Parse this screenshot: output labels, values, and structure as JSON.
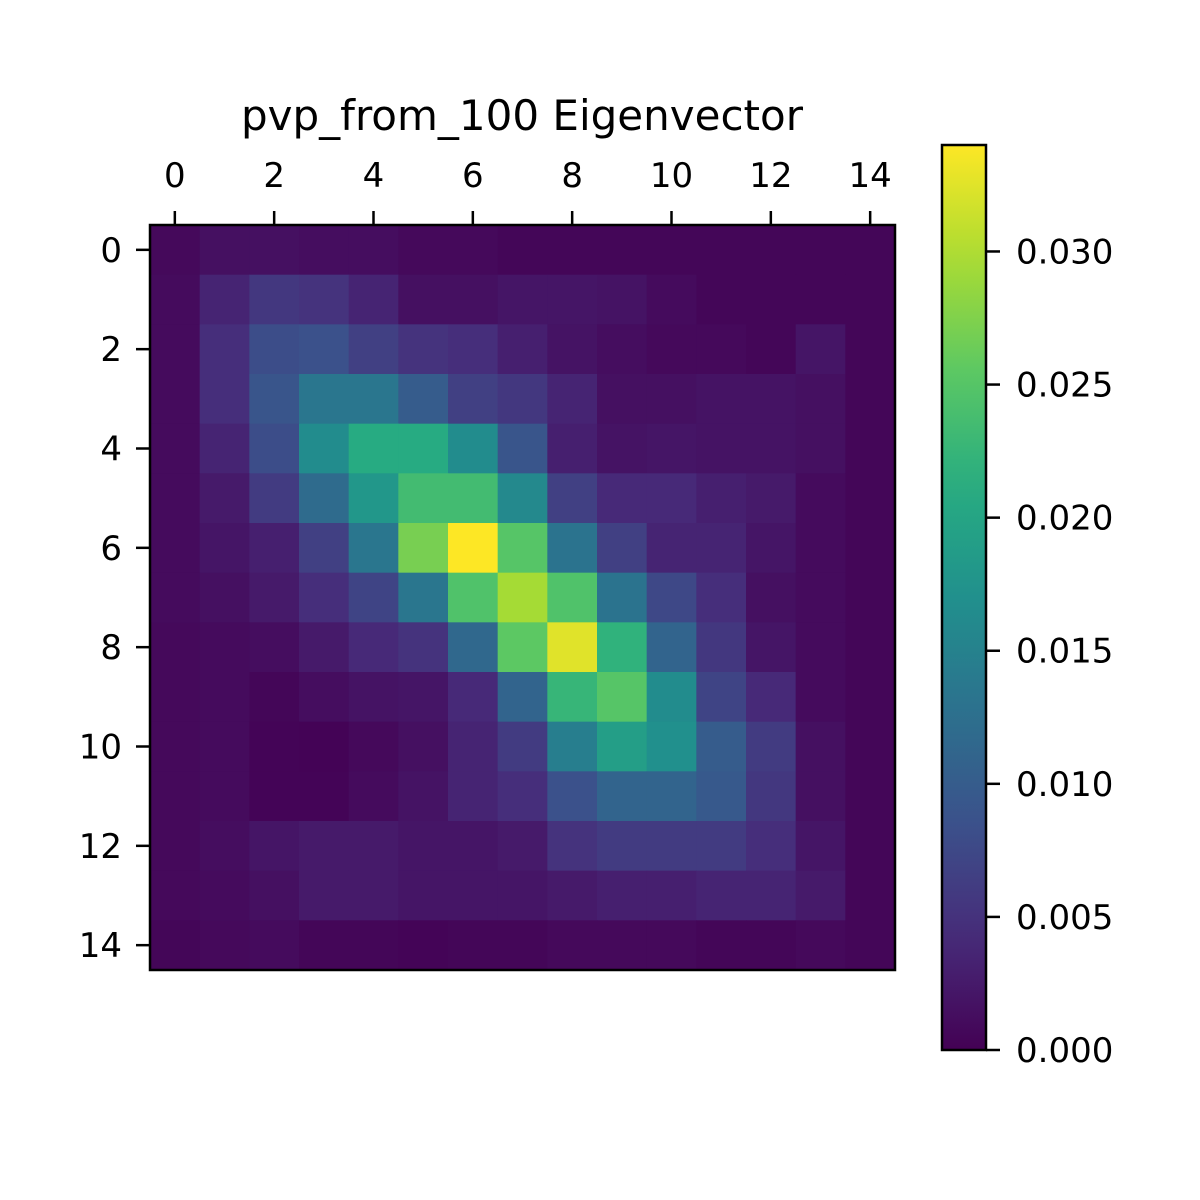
{
  "chart_data": {
    "type": "heatmap",
    "title": "pvp_from_100 Eigenvector",
    "xlabel": "",
    "ylabel": "",
    "x_tick_labels": [
      "0",
      "2",
      "4",
      "6",
      "8",
      "10",
      "12",
      "14"
    ],
    "y_tick_labels": [
      "0",
      "2",
      "4",
      "6",
      "8",
      "10",
      "12",
      "14"
    ],
    "x_tick_values": [
      0,
      2,
      4,
      6,
      8,
      10,
      12,
      14
    ],
    "y_tick_values": [
      0,
      2,
      4,
      6,
      8,
      10,
      12,
      14
    ],
    "x_axis_position": "top",
    "colormap": "viridis",
    "vmin": 0.0,
    "vmax": 0.034,
    "colorbar_ticks": [
      0.0,
      0.005,
      0.01,
      0.015,
      0.02,
      0.025,
      0.03
    ],
    "colorbar_tick_labels": [
      "0.000",
      "0.005",
      "0.010",
      "0.015",
      "0.020",
      "0.025",
      "0.030"
    ],
    "colorbar_position": "right",
    "grid": false,
    "values": [
      [
        0.0008,
        0.0015,
        0.0015,
        0.0012,
        0.0012,
        0.0008,
        0.0008,
        0.0005,
        0.0005,
        0.0005,
        0.0005,
        0.0005,
        0.0005,
        0.0005,
        0.0005
      ],
      [
        0.001,
        0.0035,
        0.0055,
        0.005,
        0.0035,
        0.0015,
        0.0015,
        0.002,
        0.002,
        0.0018,
        0.001,
        0.0005,
        0.0005,
        0.0005,
        0.0005
      ],
      [
        0.001,
        0.0045,
        0.008,
        0.0085,
        0.0065,
        0.005,
        0.0045,
        0.003,
        0.0018,
        0.0012,
        0.0008,
        0.0008,
        0.0005,
        0.002,
        0.0005
      ],
      [
        0.001,
        0.0045,
        0.009,
        0.0135,
        0.0135,
        0.01,
        0.0065,
        0.0055,
        0.0035,
        0.0015,
        0.0015,
        0.0018,
        0.0018,
        0.0015,
        0.0005
      ],
      [
        0.001,
        0.0035,
        0.008,
        0.0165,
        0.021,
        0.021,
        0.0165,
        0.009,
        0.003,
        0.0018,
        0.002,
        0.0018,
        0.0018,
        0.0015,
        0.0005
      ],
      [
        0.001,
        0.0025,
        0.006,
        0.012,
        0.018,
        0.0235,
        0.0235,
        0.016,
        0.0065,
        0.004,
        0.004,
        0.003,
        0.0025,
        0.001,
        0.0005
      ],
      [
        0.001,
        0.002,
        0.003,
        0.0065,
        0.0135,
        0.027,
        0.034,
        0.025,
        0.013,
        0.0065,
        0.0035,
        0.0035,
        0.002,
        0.001,
        0.0005
      ],
      [
        0.001,
        0.0015,
        0.0025,
        0.0045,
        0.007,
        0.0135,
        0.0245,
        0.0295,
        0.0245,
        0.013,
        0.0075,
        0.0045,
        0.0015,
        0.001,
        0.0005
      ],
      [
        0.0008,
        0.001,
        0.0012,
        0.0025,
        0.004,
        0.005,
        0.0115,
        0.0255,
        0.0325,
        0.022,
        0.011,
        0.0055,
        0.002,
        0.001,
        0.0005
      ],
      [
        0.0008,
        0.001,
        0.0005,
        0.0012,
        0.0018,
        0.002,
        0.004,
        0.011,
        0.0225,
        0.025,
        0.0165,
        0.007,
        0.004,
        0.001,
        0.0005
      ],
      [
        0.0008,
        0.001,
        0.0003,
        0.0002,
        0.0008,
        0.0015,
        0.0035,
        0.006,
        0.0145,
        0.019,
        0.017,
        0.01,
        0.006,
        0.0015,
        0.0005
      ],
      [
        0.0008,
        0.001,
        0.0003,
        0.0003,
        0.001,
        0.0018,
        0.0035,
        0.0045,
        0.0085,
        0.011,
        0.011,
        0.0095,
        0.0055,
        0.0015,
        0.0005
      ],
      [
        0.0008,
        0.0012,
        0.002,
        0.0025,
        0.0025,
        0.002,
        0.002,
        0.0025,
        0.005,
        0.006,
        0.006,
        0.006,
        0.0045,
        0.002,
        0.0005
      ],
      [
        0.0008,
        0.001,
        0.0015,
        0.0025,
        0.0025,
        0.002,
        0.002,
        0.002,
        0.0025,
        0.003,
        0.003,
        0.0035,
        0.0035,
        0.0025,
        0.0005
      ],
      [
        0.0005,
        0.0008,
        0.001,
        0.0005,
        0.0005,
        0.0003,
        0.0005,
        0.0005,
        0.0008,
        0.0008,
        0.0008,
        0.0005,
        0.0005,
        0.0008,
        0.0005
      ]
    ]
  }
}
